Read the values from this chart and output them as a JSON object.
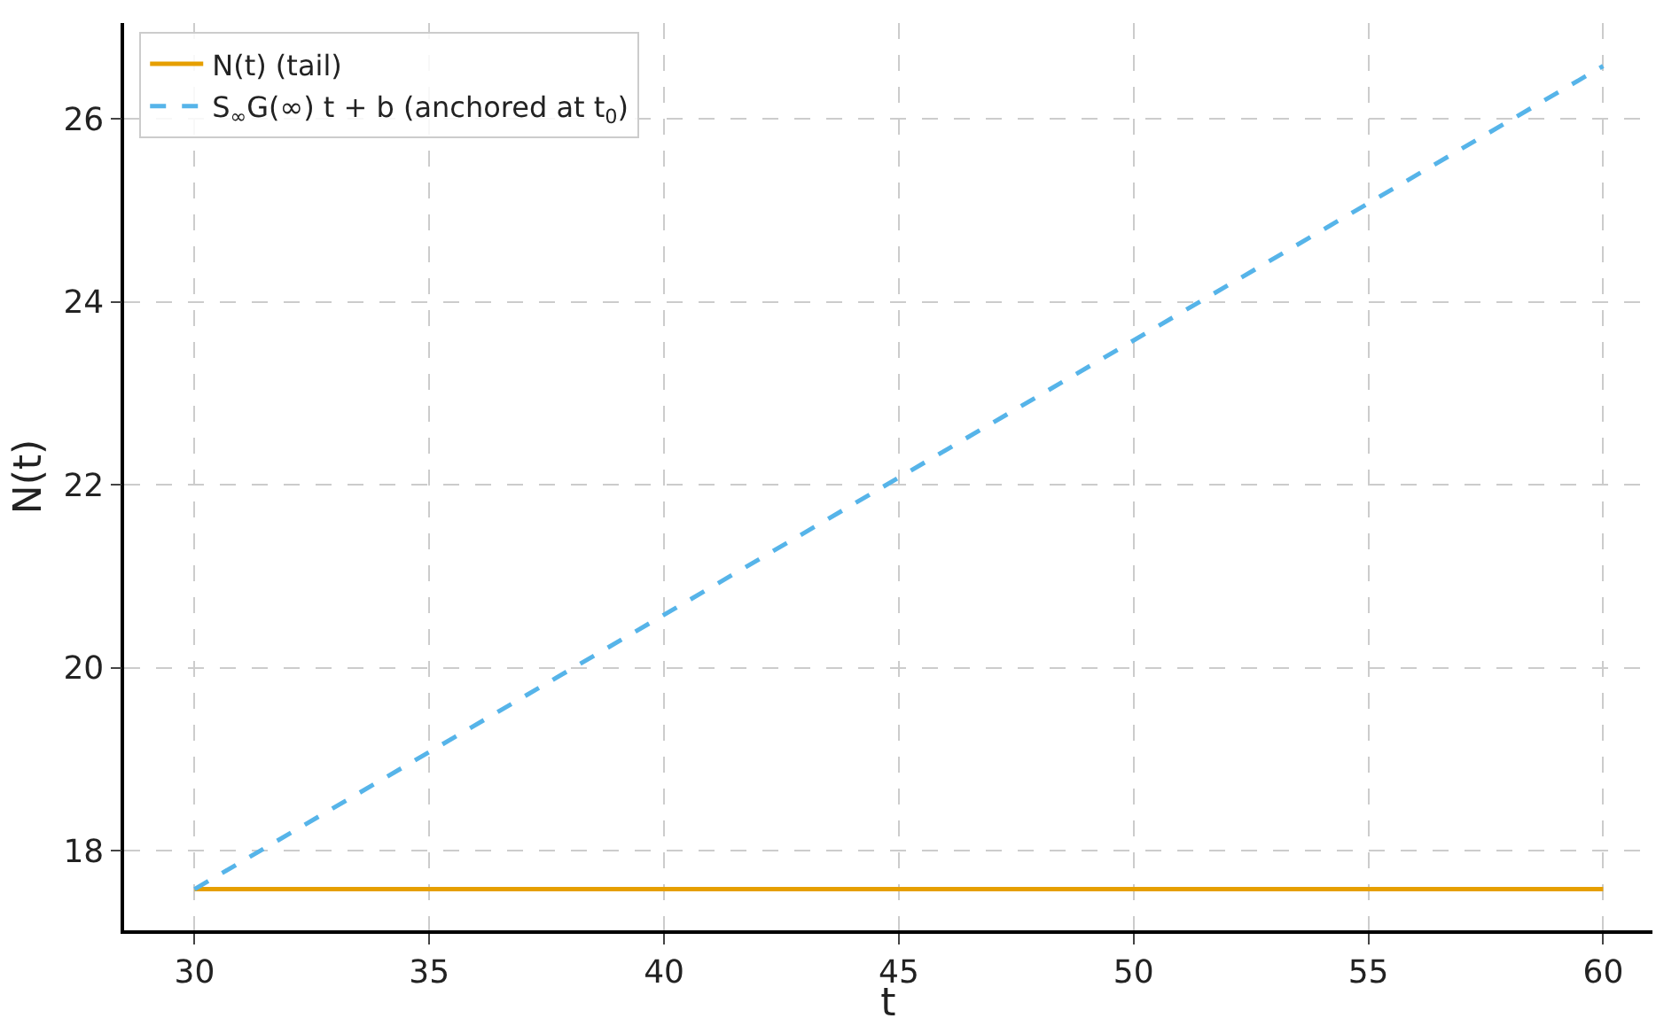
{
  "chart_data": {
    "type": "line",
    "xlabel": "t",
    "ylabel": "N(t)",
    "xlim": [
      28.5,
      61.05
    ],
    "ylim": [
      17.13,
      27.05
    ],
    "xticks": [
      30,
      35,
      40,
      45,
      50,
      55,
      60
    ],
    "yticks": [
      18,
      20,
      22,
      24,
      26
    ],
    "grid": true,
    "legend": "top left",
    "x": [
      30,
      60
    ],
    "series": [
      {
        "name": "N(t) (tail)",
        "color": "#e69f00",
        "values": [
          17.58,
          17.58
        ],
        "line_style": "solid"
      },
      {
        "name": "S$_{∞}$G(∞) t + b (anchored at t$_{0}$)",
        "color": "#56b4e9",
        "values": [
          17.58,
          26.58
        ],
        "line_style": "dashed"
      }
    ]
  }
}
